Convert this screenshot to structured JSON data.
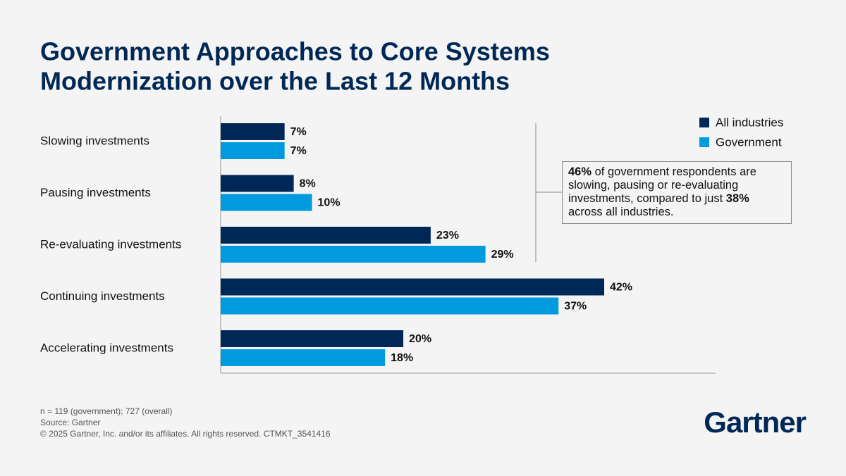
{
  "chart_data": {
    "type": "bar",
    "orientation": "horizontal",
    "title": [
      "Government Approaches to Core Systems",
      "Modernization over the Last 12 Months"
    ],
    "categories": [
      "Slowing investments",
      "Pausing investments",
      "Re-evaluating investments",
      "Continuing investments",
      "Accelerating investments"
    ],
    "series": [
      {
        "name": "All industries",
        "color": "#002856",
        "values": [
          7,
          8,
          23,
          42,
          20
        ],
        "value_labels": [
          "7%",
          "8%",
          "23%",
          "42%",
          "20%"
        ]
      },
      {
        "name": "Government",
        "color": "#009ade",
        "values": [
          7,
          10,
          29,
          37,
          18
        ],
        "value_labels": [
          "7%",
          "10%",
          "29%",
          "37%",
          "18%"
        ]
      }
    ],
    "legend": "top-right",
    "annotation": [
      "46%",
      " of government respondents are slowing, pausing or re-evaluating investments, compared to just ",
      "38%",
      " across all industries."
    ],
    "notes": [
      "n = 119 (government); 727 (overall)",
      "Source: Gartner",
      "© 2025 Gartner, Inc. and/or its affiliates. All rights reserved. CTMKT_3541416"
    ],
    "logo": "Gartner"
  }
}
